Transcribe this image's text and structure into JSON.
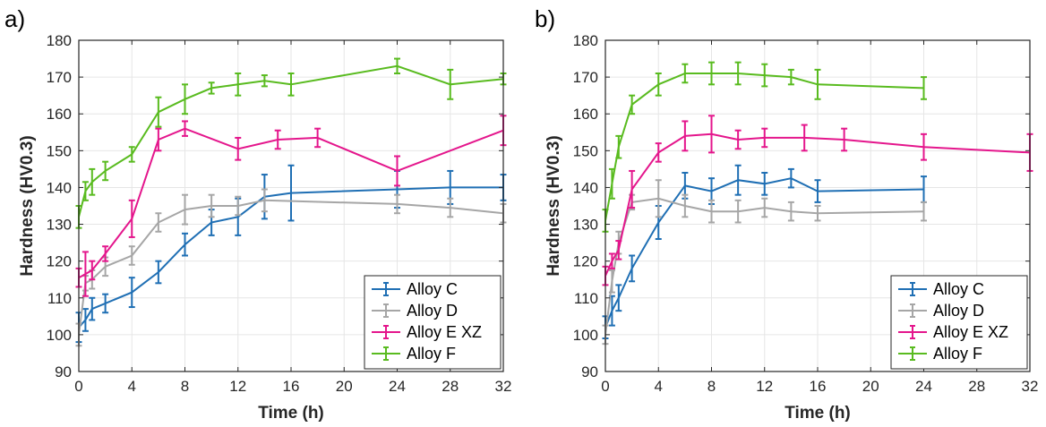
{
  "chart_data": [
    {
      "panel_label": "a)",
      "type": "line",
      "xlabel": "Time (h)",
      "ylabel": "Hardness (HV0.3)",
      "xlim": [
        0,
        32
      ],
      "ylim": [
        90,
        180
      ],
      "xticks": [
        "0",
        "4",
        "8",
        "12",
        "16",
        "20",
        "24",
        "28",
        "32"
      ],
      "yticks": [
        "90",
        "100",
        "110",
        "120",
        "130",
        "140",
        "150",
        "160",
        "170",
        "180"
      ],
      "grid": true,
      "legend_position": "bottom-right",
      "series": [
        {
          "name": "Alloy C",
          "color": "#1f6fb4",
          "x": [
            0,
            0.5,
            1,
            2,
            4,
            6,
            8,
            10,
            12,
            14,
            16,
            24,
            28,
            32
          ],
          "y": [
            102,
            104,
            107,
            108.5,
            111.5,
            117,
            124.5,
            130.5,
            132,
            137.5,
            138.5,
            139.5,
            140,
            140
          ],
          "err": [
            4,
            3,
            3,
            2.5,
            4,
            3,
            3,
            3.5,
            5,
            6,
            7.5,
            5,
            4.5,
            3.5
          ]
        },
        {
          "name": "Alloy D",
          "color": "#a6a6a6",
          "x": [
            0,
            0.5,
            1,
            2,
            4,
            6,
            8,
            10,
            12,
            14,
            24,
            28,
            32
          ],
          "y": [
            100,
            114,
            115,
            118.5,
            121.5,
            130.5,
            134,
            135,
            135,
            136.5,
            135.5,
            134.5,
            133
          ],
          "err": [
            3,
            2,
            2.5,
            2.5,
            2.5,
            2.5,
            4,
            3,
            2.5,
            3,
            2.5,
            2.5,
            2.5
          ]
        },
        {
          "name": "Alloy E XZ",
          "color": "#e4168c",
          "x": [
            0,
            0.5,
            1,
            2,
            4,
            6,
            8,
            12,
            15,
            18,
            24,
            32
          ],
          "y": [
            115.5,
            116.5,
            117.5,
            122,
            131.5,
            153,
            156,
            150.5,
            153,
            153.5,
            144.5,
            155.5
          ],
          "err": [
            2.5,
            6,
            2.5,
            2,
            5,
            3,
            2,
            3,
            2.5,
            2.5,
            4,
            4
          ]
        },
        {
          "name": "Alloy F",
          "color": "#59bb1f",
          "x": [
            0,
            0.5,
            1,
            2,
            4,
            6,
            8,
            10,
            12,
            14,
            16,
            24,
            28,
            32
          ],
          "y": [
            132,
            139,
            141.5,
            144.5,
            149,
            160.5,
            164,
            167,
            168,
            169,
            168,
            173,
            168,
            169.5
          ],
          "err": [
            3,
            2.5,
            3.5,
            2.5,
            2,
            4,
            4,
            1.5,
            3,
            1.5,
            3,
            2,
            4,
            1.5
          ]
        }
      ]
    },
    {
      "panel_label": "b)",
      "type": "line",
      "xlabel": "Time (h)",
      "ylabel": "Hardness (HV0.3)",
      "xlim": [
        0,
        32
      ],
      "ylim": [
        90,
        180
      ],
      "xticks": [
        "0",
        "4",
        "8",
        "12",
        "16",
        "20",
        "24",
        "28",
        "32"
      ],
      "yticks": [
        "90",
        "100",
        "110",
        "120",
        "130",
        "140",
        "150",
        "160",
        "170",
        "180"
      ],
      "grid": true,
      "legend_position": "bottom-right",
      "series": [
        {
          "name": "Alloy C",
          "color": "#1f6fb4",
          "x": [
            0,
            0.5,
            1,
            2,
            4,
            6,
            8,
            10,
            12,
            14,
            16,
            24
          ],
          "y": [
            102,
            106.5,
            110,
            118,
            130.5,
            140.5,
            139,
            142,
            141,
            142.5,
            139,
            139.5
          ],
          "err": [
            3,
            4,
            3.5,
            3.5,
            4.5,
            3.5,
            3.5,
            4,
            3,
            2.5,
            3,
            3.5
          ]
        },
        {
          "name": "Alloy D",
          "color": "#a6a6a6",
          "x": [
            0,
            0.5,
            1,
            2,
            4,
            6,
            8,
            10,
            12,
            14,
            16,
            24
          ],
          "y": [
            100,
            114.5,
            125,
            136,
            137,
            135,
            133.5,
            133.5,
            134.5,
            133.5,
            133,
            133.5
          ],
          "err": [
            2.5,
            3,
            3,
            2,
            5,
            3,
            3,
            3,
            2.5,
            2.5,
            2,
            2.5
          ]
        },
        {
          "name": "Alloy E XZ",
          "color": "#e4168c",
          "x": [
            0,
            0.5,
            1,
            2,
            4,
            6,
            8,
            10,
            12,
            15,
            18,
            24,
            32
          ],
          "y": [
            116,
            120,
            123,
            139.5,
            149.5,
            154,
            154.5,
            153,
            153.5,
            153.5,
            153,
            151,
            149.5
          ],
          "err": [
            2.5,
            2,
            2.5,
            5,
            2.5,
            4,
            5,
            2.5,
            2.5,
            3.5,
            3,
            3.5,
            5
          ]
        },
        {
          "name": "Alloy F",
          "color": "#59bb1f",
          "x": [
            0,
            0.5,
            1,
            2,
            4,
            6,
            8,
            10,
            12,
            14,
            16,
            24
          ],
          "y": [
            131,
            141,
            151,
            162.5,
            168,
            171,
            171,
            171,
            170.5,
            170,
            168,
            167
          ],
          "err": [
            3,
            4,
            3,
            2.5,
            3,
            2.5,
            3,
            3,
            3,
            2,
            4,
            3
          ]
        }
      ]
    }
  ]
}
